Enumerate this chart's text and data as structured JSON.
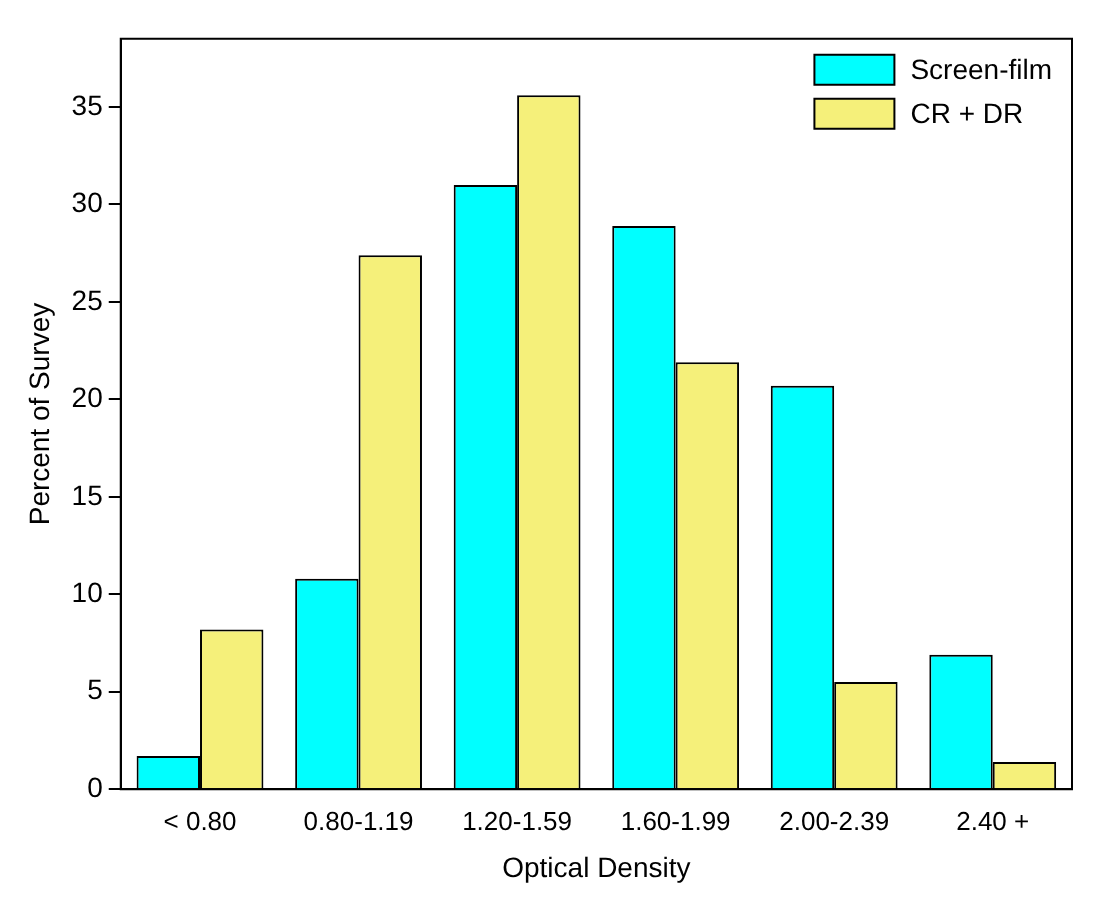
{
  "chart_data": {
    "type": "bar",
    "xlabel": "Optical Density",
    "ylabel": "Percent of Survey",
    "categories": [
      "< 0.80",
      "0.80-1.19",
      "1.20-1.59",
      "1.60-1.99",
      "2.00-2.39",
      "2.40 +"
    ],
    "series": [
      {
        "name": "Screen-film",
        "color": "#00ffff",
        "values": [
          1.7,
          10.8,
          31.0,
          28.9,
          20.7,
          6.9
        ]
      },
      {
        "name": "CR + DR",
        "color": "#f5f07a",
        "values": [
          8.2,
          27.4,
          35.6,
          21.9,
          5.5,
          1.4
        ]
      }
    ],
    "ylim": [
      0,
      38.5
    ],
    "yticks": [
      0,
      5,
      10,
      15,
      20,
      25,
      30,
      35
    ],
    "grid": false,
    "legend": "top right"
  }
}
